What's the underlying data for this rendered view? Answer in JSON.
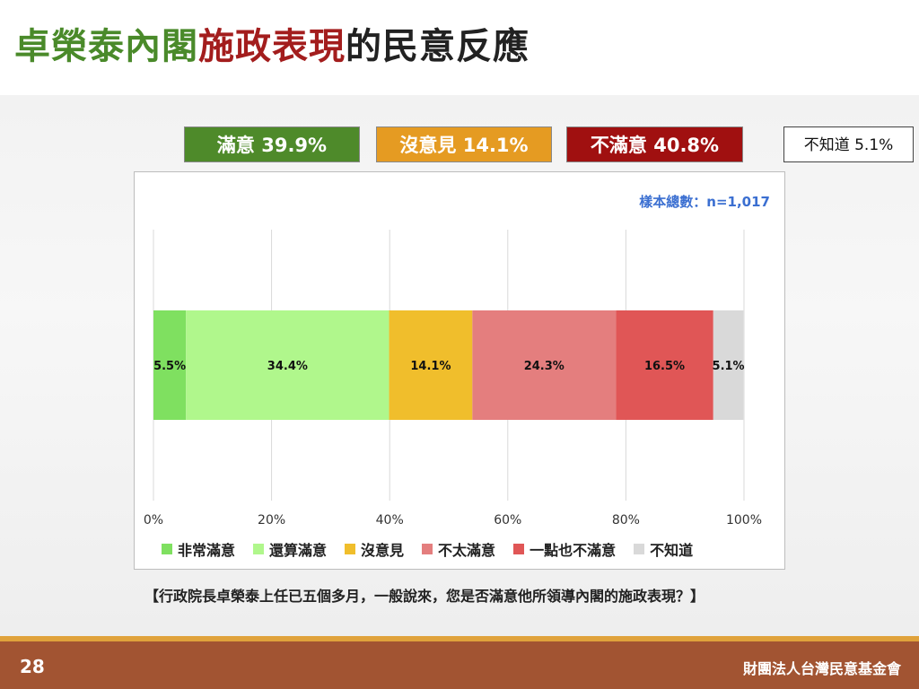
{
  "header": {
    "title_part1": "卓榮泰內閣",
    "title_part2": "施政表現",
    "title_part3": "的民意反應"
  },
  "summary": {
    "satisfied": "滿意 39.9%",
    "neutral": "沒意見 14.1%",
    "dissatisfied": "不滿意 40.8%",
    "unknown": "不知道 5.1%"
  },
  "sample_note": "樣本總數：n=1,017",
  "chart_data": {
    "type": "bar",
    "orientation": "horizontal-stacked",
    "xlim": [
      0,
      100
    ],
    "ticks": [
      "0%",
      "20%",
      "40%",
      "60%",
      "80%",
      "100%"
    ],
    "grid": true,
    "legend_position": "bottom",
    "series": [
      {
        "name": "非常滿意",
        "value": 5.5,
        "label": "5.5%",
        "color": "#7fe060"
      },
      {
        "name": "還算滿意",
        "value": 34.4,
        "label": "34.4%",
        "color": "#b0f78c"
      },
      {
        "name": "沒意見",
        "value": 14.1,
        "label": "14.1%",
        "color": "#f0be2c"
      },
      {
        "name": "不太滿意",
        "value": 24.3,
        "label": "24.3%",
        "color": "#e47e7e"
      },
      {
        "name": "一點也不滿意",
        "value": 16.5,
        "label": "16.5%",
        "color": "#e05656"
      },
      {
        "name": "不知道",
        "value": 5.1,
        "label": "5.1%",
        "color": "#d9d9d9"
      }
    ]
  },
  "question": "【行政院長卓榮泰上任已五個多月，一般說來，您是否滿意他所領導內閣的施政表現？】",
  "footer": {
    "page_number": "28",
    "organization": "財團法人台灣民意基金會"
  }
}
